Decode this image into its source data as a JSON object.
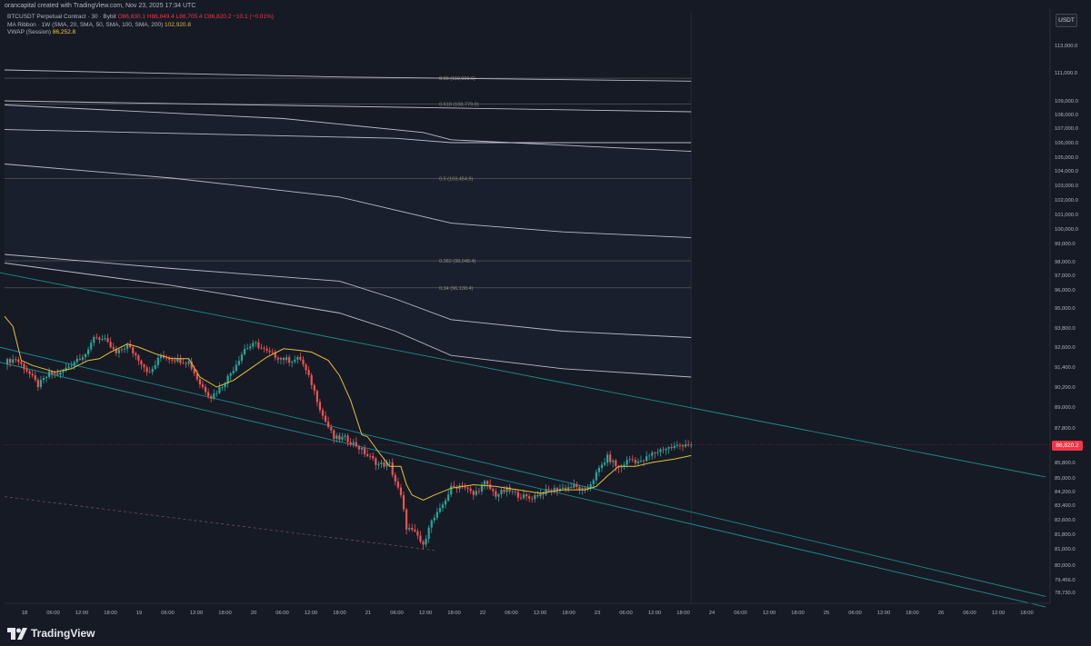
{
  "header": {
    "credit": "orancapital created with TradingView.com, Nov 23, 2025 17:34 UTC",
    "symbol": "BTCUSDT Perpetual Contract · 30 · Bybit",
    "ohlc": "O86,830.1 H86,849.4 L86,705.4 C86,820.2 −10.1 (−0.01%)",
    "ma_label": "MA Ribbon · 1W (SMA, 20, SMA, 50, SMA, 100, SMA, 200)",
    "ma_value": "102,920.8",
    "vwap_label": "VWAP (Session)",
    "vwap_value": "86,252.8"
  },
  "scale_unit": "USDT",
  "last_price": "86,820.2",
  "brand": "TradingView",
  "colors": {
    "background": "#161a25",
    "up": "#26a69a",
    "down": "#ef5350",
    "vwap": "#e2c13a",
    "ribbon": "#d7d3e6",
    "channel": "#1f8b8f",
    "fib": "#9c9c8a",
    "last_price": "#f23645"
  },
  "chart_data": {
    "type": "candlestick",
    "y_ticks": [
      "113,000.0",
      "111,000.0",
      "109,000.0",
      "108,000.0",
      "107,000.0",
      "106,000.0",
      "105,000.0",
      "104,000.0",
      "103,000.0",
      "102,000.0",
      "101,000.0",
      "100,000.0",
      "99,000.0",
      "98,000.0",
      "97,000.0",
      "96,000.0",
      "95,000.0",
      "93,800.0",
      "92,600.0",
      "91,400.0",
      "90,200.0",
      "89,000.0",
      "87,800.0",
      "85,800.0",
      "85,000.0",
      "84,200.0",
      "83,400.0",
      "82,600.0",
      "81,800.0",
      "81,000.0",
      "80,000.0",
      "79,456.0",
      "78,730.0"
    ],
    "y_tick_values": [
      113000,
      111000,
      109000,
      108000,
      107000,
      106000,
      105000,
      104000,
      103000,
      102000,
      101000,
      100000,
      99000,
      98000,
      97000,
      96000,
      95000,
      93800,
      92600,
      91400,
      90200,
      89000,
      87800,
      85800,
      85000,
      84200,
      83400,
      82600,
      81800,
      81000,
      80000,
      79456,
      78730
    ],
    "x_ticks": [
      "18",
      "06:00",
      "12:00",
      "18:00",
      "19",
      "06:00",
      "12:00",
      "18:00",
      "20",
      "06:00",
      "12:00",
      "18:00",
      "21",
      "06:00",
      "12:00",
      "18:00",
      "22",
      "06:00",
      "12:00",
      "18:00",
      "23",
      "06:00",
      "12:00",
      "18:00",
      "24",
      "06:00",
      "12:00",
      "18:00",
      "25",
      "06:00",
      "12:00",
      "18:00",
      "26",
      "06:00",
      "12:00",
      "18:00"
    ],
    "x_start": "Nov 18 00:00",
    "last_price": 86820.2,
    "candles_30m_anchor_closes": [
      [
        0,
        91700
      ],
      [
        4,
        91900
      ],
      [
        8,
        91200
      ],
      [
        12,
        90300
      ],
      [
        16,
        91000
      ],
      [
        20,
        91000
      ],
      [
        26,
        91900
      ],
      [
        30,
        92300
      ],
      [
        32,
        93300
      ],
      [
        36,
        93000
      ],
      [
        40,
        92200
      ],
      [
        44,
        92700
      ],
      [
        48,
        91900
      ],
      [
        52,
        91000
      ],
      [
        56,
        92100
      ],
      [
        60,
        91900
      ],
      [
        66,
        91700
      ],
      [
        70,
        90400
      ],
      [
        74,
        89600
      ],
      [
        78,
        90300
      ],
      [
        82,
        91300
      ],
      [
        86,
        92500
      ],
      [
        90,
        92800
      ],
      [
        94,
        92300
      ],
      [
        98,
        92000
      ],
      [
        102,
        91800
      ],
      [
        106,
        91900
      ],
      [
        110,
        90400
      ],
      [
        114,
        88500
      ],
      [
        118,
        87200
      ],
      [
        122,
        87200
      ],
      [
        126,
        86800
      ],
      [
        130,
        86200
      ],
      [
        134,
        85700
      ],
      [
        138,
        85700
      ],
      [
        142,
        83900
      ],
      [
        144,
        82200
      ],
      [
        148,
        81700
      ],
      [
        150,
        81100
      ],
      [
        152,
        82300
      ],
      [
        156,
        83100
      ],
      [
        160,
        84400
      ],
      [
        164,
        84600
      ],
      [
        168,
        84000
      ],
      [
        172,
        84700
      ],
      [
        176,
        84000
      ],
      [
        180,
        84300
      ],
      [
        184,
        84000
      ],
      [
        188,
        83800
      ],
      [
        192,
        84100
      ],
      [
        196,
        84300
      ],
      [
        200,
        84400
      ],
      [
        204,
        84500
      ],
      [
        208,
        84200
      ],
      [
        212,
        85200
      ],
      [
        216,
        86100
      ],
      [
        220,
        85500
      ],
      [
        224,
        86000
      ],
      [
        228,
        85800
      ],
      [
        232,
        86300
      ],
      [
        236,
        86600
      ],
      [
        240,
        86700
      ],
      [
        244,
        86900
      ],
      [
        246,
        86820
      ]
    ],
    "vwap_session": [
      [
        0,
        94500
      ],
      [
        3,
        93900
      ],
      [
        6,
        91800
      ],
      [
        10,
        91500
      ],
      [
        14,
        91300
      ],
      [
        18,
        91100
      ],
      [
        24,
        91300
      ],
      [
        30,
        91800
      ],
      [
        34,
        91900
      ],
      [
        38,
        92300
      ],
      [
        44,
        92800
      ],
      [
        48,
        92600
      ],
      [
        54,
        92200
      ],
      [
        60,
        91900
      ],
      [
        66,
        91900
      ],
      [
        70,
        90800
      ],
      [
        76,
        90200
      ],
      [
        82,
        90600
      ],
      [
        88,
        91300
      ],
      [
        94,
        92000
      ],
      [
        100,
        92500
      ],
      [
        106,
        92400
      ],
      [
        110,
        92300
      ],
      [
        116,
        91800
      ],
      [
        120,
        90900
      ],
      [
        124,
        89400
      ],
      [
        128,
        87400
      ],
      [
        130,
        87300
      ],
      [
        134,
        86400
      ],
      [
        138,
        85600
      ],
      [
        142,
        85600
      ],
      [
        144,
        84600
      ],
      [
        146,
        84000
      ],
      [
        150,
        83700
      ],
      [
        154,
        84000
      ],
      [
        160,
        84400
      ],
      [
        168,
        84600
      ],
      [
        176,
        84500
      ],
      [
        184,
        84300
      ],
      [
        192,
        84100
      ],
      [
        200,
        84300
      ],
      [
        208,
        84300
      ],
      [
        212,
        84500
      ],
      [
        216,
        85100
      ],
      [
        220,
        85600
      ],
      [
        226,
        85600
      ],
      [
        232,
        85800
      ],
      [
        240,
        86000
      ],
      [
        246,
        86200
      ]
    ],
    "ma_ribbon": [
      {
        "points": [
          [
            0,
            111200
          ],
          [
            120,
            110700
          ],
          [
            246,
            110400
          ]
        ]
      },
      {
        "points": [
          [
            0,
            109000
          ],
          [
            120,
            108600
          ],
          [
            246,
            108200
          ]
        ]
      },
      {
        "points": [
          [
            0,
            108700
          ],
          [
            100,
            107700
          ],
          [
            150,
            106700
          ],
          [
            160,
            106200
          ],
          [
            246,
            105400
          ]
        ]
      },
      {
        "points": [
          [
            0,
            106900
          ],
          [
            140,
            106300
          ],
          [
            160,
            106000
          ],
          [
            246,
            106000
          ]
        ]
      },
      {
        "points": [
          [
            0,
            104500
          ],
          [
            60,
            103500
          ],
          [
            120,
            102200
          ],
          [
            140,
            101300
          ],
          [
            160,
            100400
          ],
          [
            200,
            99800
          ],
          [
            246,
            99400
          ]
        ]
      },
      {
        "points": [
          [
            0,
            98400
          ],
          [
            60,
            97500
          ],
          [
            120,
            96600
          ],
          [
            140,
            95500
          ],
          [
            160,
            94300
          ],
          [
            200,
            93600
          ],
          [
            246,
            93200
          ]
        ]
      },
      {
        "points": [
          [
            0,
            97900
          ],
          [
            60,
            96300
          ],
          [
            120,
            94700
          ],
          [
            140,
            93600
          ],
          [
            160,
            92100
          ],
          [
            200,
            91300
          ],
          [
            246,
            90800
          ]
        ]
      }
    ],
    "fib_levels": [
      {
        "label": "0.66 (110,609.0)",
        "value": 110609
      },
      {
        "label": "0.618 (108,779.0)",
        "value": 108779
      },
      {
        "label": "0.5 (103,454.9)",
        "value": 103455
      },
      {
        "label": "0.382 (98,048.4)",
        "value": 98048
      },
      {
        "label": "0.34 (96,138.4)",
        "value": 96138
      }
    ],
    "channel_lines": [
      {
        "from": [
          -2,
          97200
        ],
        "to": [
          373,
          85050
        ]
      },
      {
        "from": [
          -2,
          92600
        ],
        "to": [
          373,
          78500
        ]
      },
      {
        "from": [
          -2,
          91700
        ],
        "to": [
          373,
          77900
        ]
      }
    ],
    "dashed_line": {
      "from": [
        0,
        83900
      ],
      "to": [
        154,
        80900
      ]
    },
    "vertical_divider_x": 246,
    "grid": false,
    "legend": "top-left"
  }
}
